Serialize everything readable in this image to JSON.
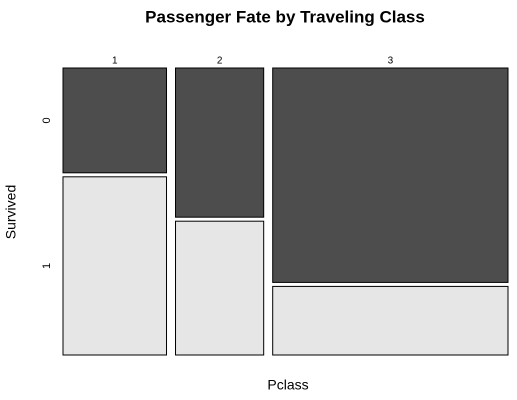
{
  "chart_data": {
    "type": "mosaic",
    "title": "Passenger Fate by Traveling Class",
    "x_label": "Pclass",
    "y_label": "Survived",
    "categories": [
      "1",
      "2",
      "3"
    ],
    "series": [
      {
        "name": "0",
        "color": "#4d4d4d",
        "values": [
          80,
          97,
          372
        ]
      },
      {
        "name": "1",
        "color": "#e6e6e6",
        "values": [
          136,
          87,
          119
        ]
      }
    ]
  }
}
